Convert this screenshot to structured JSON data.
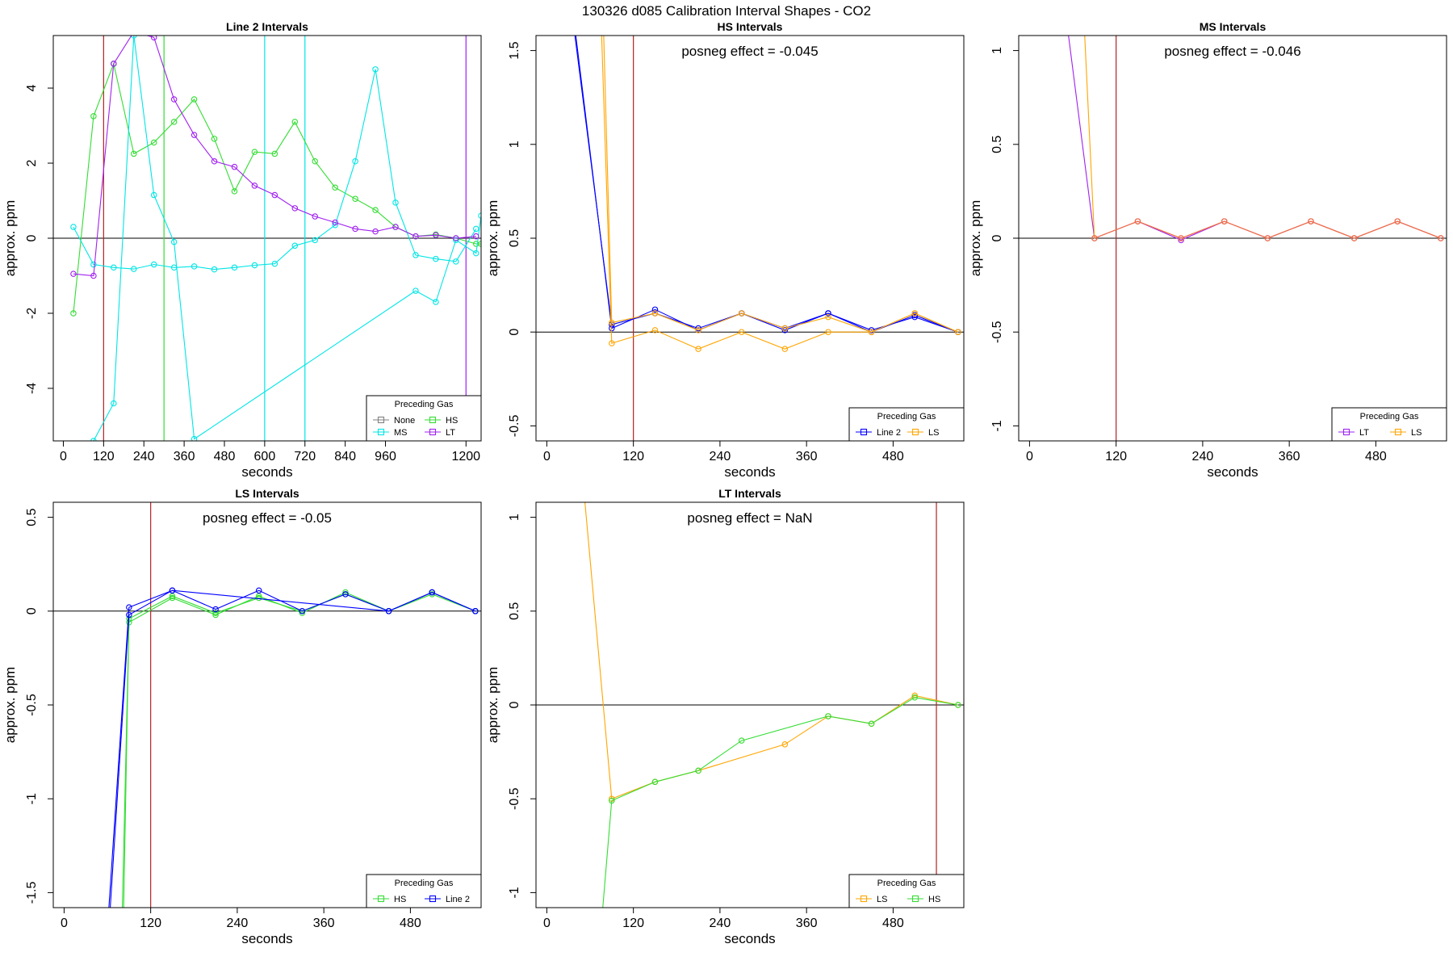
{
  "figure": {
    "title": "130326  d085   Calibration Interval Shapes - CO2"
  },
  "chart_data": [
    {
      "type": "line",
      "title": "Line 2 Intervals",
      "xlabel": "seconds",
      "ylabel": "approx. ppm",
      "xlim": [
        -30,
        1245
      ],
      "ylim": [
        -5.4,
        5.4
      ],
      "xticks": [
        0,
        120,
        240,
        360,
        480,
        600,
        720,
        840,
        960,
        1200
      ],
      "yticks": [
        -4,
        -2,
        0,
        2,
        4
      ],
      "annotation": "",
      "vlines": [
        {
          "x": 120,
          "color": "#b22222"
        },
        {
          "x": 300,
          "color": "#33dd33"
        },
        {
          "x": 600,
          "color": "#00e5e5"
        },
        {
          "x": 720,
          "color": "#00e5e5"
        },
        {
          "x": 1200,
          "color": "#a020f0"
        }
      ],
      "legend": {
        "title": "Preceding Gas",
        "position": "bottom-right",
        "columns": 2
      },
      "series": [
        {
          "name": "None",
          "color": "#808080",
          "x": [
            150
          ],
          "y": [
            4.65
          ]
        },
        {
          "name": "HS",
          "color": "#33dd33",
          "x": [
            30,
            90,
            150,
            210,
            270,
            330,
            390,
            450,
            510,
            570,
            630,
            690,
            750,
            810,
            870,
            930,
            990,
            1050,
            1110,
            1170,
            1230,
            1245
          ],
          "y": [
            -2.0,
            3.25,
            4.65,
            2.25,
            2.55,
            3.1,
            3.7,
            2.65,
            1.25,
            2.3,
            2.25,
            3.1,
            2.05,
            1.35,
            1.05,
            0.75,
            0.3,
            0.05,
            0.1,
            0.0,
            -0.15,
            -0.15
          ]
        },
        {
          "name": "MS",
          "color": "#00e5e5",
          "x": [
            30,
            90,
            150,
            210,
            270,
            330,
            390,
            450,
            510,
            570,
            630,
            690,
            750,
            810,
            870,
            930,
            990,
            1050,
            1110,
            1170,
            1230
          ],
          "y": [
            0.3,
            -0.7,
            -0.78,
            -0.82,
            -0.7,
            -0.78,
            -0.75,
            -0.83,
            -0.78,
            -0.72,
            -0.68,
            -0.2,
            -0.05,
            0.35,
            2.05,
            4.5,
            0.95,
            -0.45,
            -0.55,
            -0.62,
            0.25
          ]
        },
        {
          "name": "MS",
          "color": "#00e5e5",
          "x": [
            30,
            90,
            150,
            210,
            270,
            330,
            390,
            1050,
            1110,
            1170,
            1230,
            1245
          ],
          "y": [
            -5.5,
            -5.4,
            -4.4,
            5.4,
            1.15,
            -0.1,
            -5.35,
            -1.4,
            -1.7,
            -0.05,
            -0.4,
            0.6
          ]
        },
        {
          "name": "LT",
          "color": "#a020f0",
          "x": [
            30,
            90,
            150,
            210,
            270,
            330,
            390,
            450,
            510,
            570,
            630,
            690,
            750,
            810,
            870,
            930,
            990,
            1050,
            1110,
            1170,
            1230
          ],
          "y": [
            -0.95,
            -1.0,
            4.65,
            5.5,
            5.35,
            3.7,
            2.75,
            2.05,
            1.9,
            1.4,
            1.15,
            0.8,
            0.58,
            0.42,
            0.25,
            0.18,
            0.3,
            0.05,
            0.08,
            0.0,
            0.05
          ]
        }
      ]
    },
    {
      "type": "line",
      "title": "HS Intervals",
      "xlabel": "seconds",
      "ylabel": "approx. ppm",
      "xlim": [
        -15,
        578
      ],
      "ylim": [
        -0.58,
        1.58
      ],
      "xticks": [
        0,
        120,
        240,
        360,
        480
      ],
      "yticks": [
        -0.5,
        0.0,
        0.5,
        1.0,
        1.5
      ],
      "annotation": "posneg effect = -0.045",
      "vlines": [
        {
          "x": 120,
          "color": "#b22222"
        }
      ],
      "legend": {
        "title": "Preceding Gas",
        "position": "bottom-right",
        "columns": 2
      },
      "series": [
        {
          "name": "Line 2",
          "color": "#0000ff",
          "x": [
            30,
            90,
            150,
            210,
            270,
            330,
            390,
            450,
            510,
            570
          ],
          "y": [
            1.9,
            0.02,
            0.12,
            0.01,
            0.1,
            0.01,
            0.1,
            0.0,
            0.09,
            0.0
          ]
        },
        {
          "name": "Line 2",
          "color": "#0000ff",
          "x": [
            30,
            90,
            150,
            210,
            270,
            330,
            390,
            450,
            510,
            570
          ],
          "y": [
            1.85,
            0.04,
            0.1,
            0.02,
            0.1,
            0.02,
            0.1,
            0.01,
            0.08,
            0.0
          ]
        },
        {
          "name": "LS",
          "color": "#ffa500",
          "x": [
            75,
            90,
            150,
            210,
            270,
            330,
            390,
            450,
            510,
            570
          ],
          "y": [
            1.7,
            -0.06,
            0.01,
            -0.09,
            -0.0,
            -0.09,
            0.0,
            0.0,
            0.1,
            0.0
          ]
        },
        {
          "name": "LS",
          "color": "#ffa500",
          "x": [
            78,
            90,
            150,
            210,
            270,
            330,
            390,
            450,
            510,
            570
          ],
          "y": [
            1.7,
            0.05,
            0.1,
            0.01,
            0.1,
            0.02,
            0.08,
            0.0,
            0.1,
            0.0
          ]
        }
      ]
    },
    {
      "type": "line",
      "title": "MS Intervals",
      "xlabel": "seconds",
      "ylabel": "approx. ppm",
      "xlim": [
        -15,
        578
      ],
      "ylim": [
        -1.08,
        1.08
      ],
      "xticks": [
        0,
        120,
        240,
        360,
        480
      ],
      "yticks": [
        -1.0,
        -0.5,
        0.0,
        0.5,
        1.0
      ],
      "annotation": "posneg effect = -0.046",
      "vlines": [
        {
          "x": 120,
          "color": "#b22222"
        }
      ],
      "legend": {
        "title": "Preceding Gas",
        "position": "bottom-right",
        "columns": 2
      },
      "series": [
        {
          "name": "LT",
          "color": "#a020f0",
          "x": [
            50,
            90,
            150,
            210,
            270,
            330,
            390,
            450,
            510,
            570
          ],
          "y": [
            1.2,
            0.0,
            0.09,
            -0.01,
            0.09,
            0.0,
            0.09,
            0.0,
            0.09,
            0.0
          ]
        },
        {
          "name": "LS",
          "color": "#ffa500",
          "x": [
            75,
            90,
            150,
            210,
            270,
            330,
            390,
            450,
            510,
            570
          ],
          "y": [
            1.2,
            0.0,
            0.09,
            0.0,
            0.09,
            0.0,
            0.09,
            0.0,
            0.09,
            0.0
          ]
        },
        {
          "name": "LS",
          "color": "#ee6a50",
          "x": [
            90,
            150,
            210,
            270,
            330,
            390,
            450,
            510,
            570
          ],
          "y": [
            0.0,
            0.09,
            0.0,
            0.09,
            0.0,
            0.09,
            0.0,
            0.09,
            0.0
          ]
        }
      ]
    },
    {
      "type": "line",
      "title": "LS Intervals",
      "xlabel": "seconds",
      "ylabel": "approx. ppm",
      "xlim": [
        -15,
        578
      ],
      "ylim": [
        -1.58,
        0.58
      ],
      "xticks": [
        0,
        120,
        240,
        360,
        480
      ],
      "yticks": [
        -1.5,
        -1.0,
        -0.5,
        0.0,
        0.5
      ],
      "annotation": "posneg effect = -0.05",
      "vlines": [
        {
          "x": 120,
          "color": "#b22222"
        }
      ],
      "legend": {
        "title": "Preceding Gas",
        "position": "bottom-right",
        "columns": 2
      },
      "series": [
        {
          "name": "HS",
          "color": "#33dd33",
          "x": [
            80,
            90,
            150,
            210,
            270,
            330,
            390,
            450,
            510,
            570
          ],
          "y": [
            -1.7,
            -0.06,
            0.07,
            -0.02,
            0.08,
            -0.01,
            0.1,
            0.0,
            0.1,
            0.0
          ]
        },
        {
          "name": "HS",
          "color": "#33dd33",
          "x": [
            82,
            90,
            150,
            210,
            270,
            330,
            390,
            450,
            510,
            570
          ],
          "y": [
            -1.7,
            -0.04,
            0.08,
            -0.01,
            0.07,
            0.0,
            0.09,
            0.0,
            0.09,
            0.0
          ]
        },
        {
          "name": "Line 2",
          "color": "#0000ff",
          "x": [
            60,
            90,
            150,
            210,
            270,
            330,
            390,
            450,
            510,
            570
          ],
          "y": [
            -1.7,
            0.02,
            0.11,
            0.01,
            0.11,
            0.0,
            0.09,
            0.0,
            0.1,
            0.0
          ]
        },
        {
          "name": "Line 2",
          "color": "#0000ff",
          "x": [
            62,
            90,
            150,
            450,
            510,
            570
          ],
          "y": [
            -1.7,
            -0.02,
            0.11,
            0.0,
            0.1,
            0.0
          ]
        }
      ]
    },
    {
      "type": "line",
      "title": "LT Intervals",
      "xlabel": "seconds",
      "ylabel": "approx. ppm",
      "xlim": [
        -15,
        578
      ],
      "ylim": [
        -1.08,
        1.08
      ],
      "xticks": [
        0,
        120,
        240,
        360,
        480
      ],
      "yticks": [
        -1.0,
        -0.5,
        0.0,
        0.5,
        1.0
      ],
      "annotation": "posneg effect = NaN",
      "vlines": [
        {
          "x": 540,
          "color": "#b22222"
        }
      ],
      "legend": {
        "title": "Preceding Gas",
        "position": "bottom-right",
        "columns": 2
      },
      "series": [
        {
          "name": "LS",
          "color": "#ffa500",
          "x": [
            50,
            90,
            150,
            210,
            330,
            390,
            450,
            510,
            570
          ],
          "y": [
            1.2,
            -0.5,
            -0.41,
            -0.35,
            -0.21,
            -0.06,
            -0.1,
            0.05,
            0.0
          ]
        },
        {
          "name": "HS",
          "color": "#33dd33",
          "x": [
            75,
            90,
            150,
            210,
            270,
            390,
            450,
            510,
            570
          ],
          "y": [
            -1.2,
            -0.51,
            -0.41,
            -0.35,
            -0.19,
            -0.06,
            -0.1,
            0.04,
            0.0
          ]
        }
      ]
    }
  ]
}
